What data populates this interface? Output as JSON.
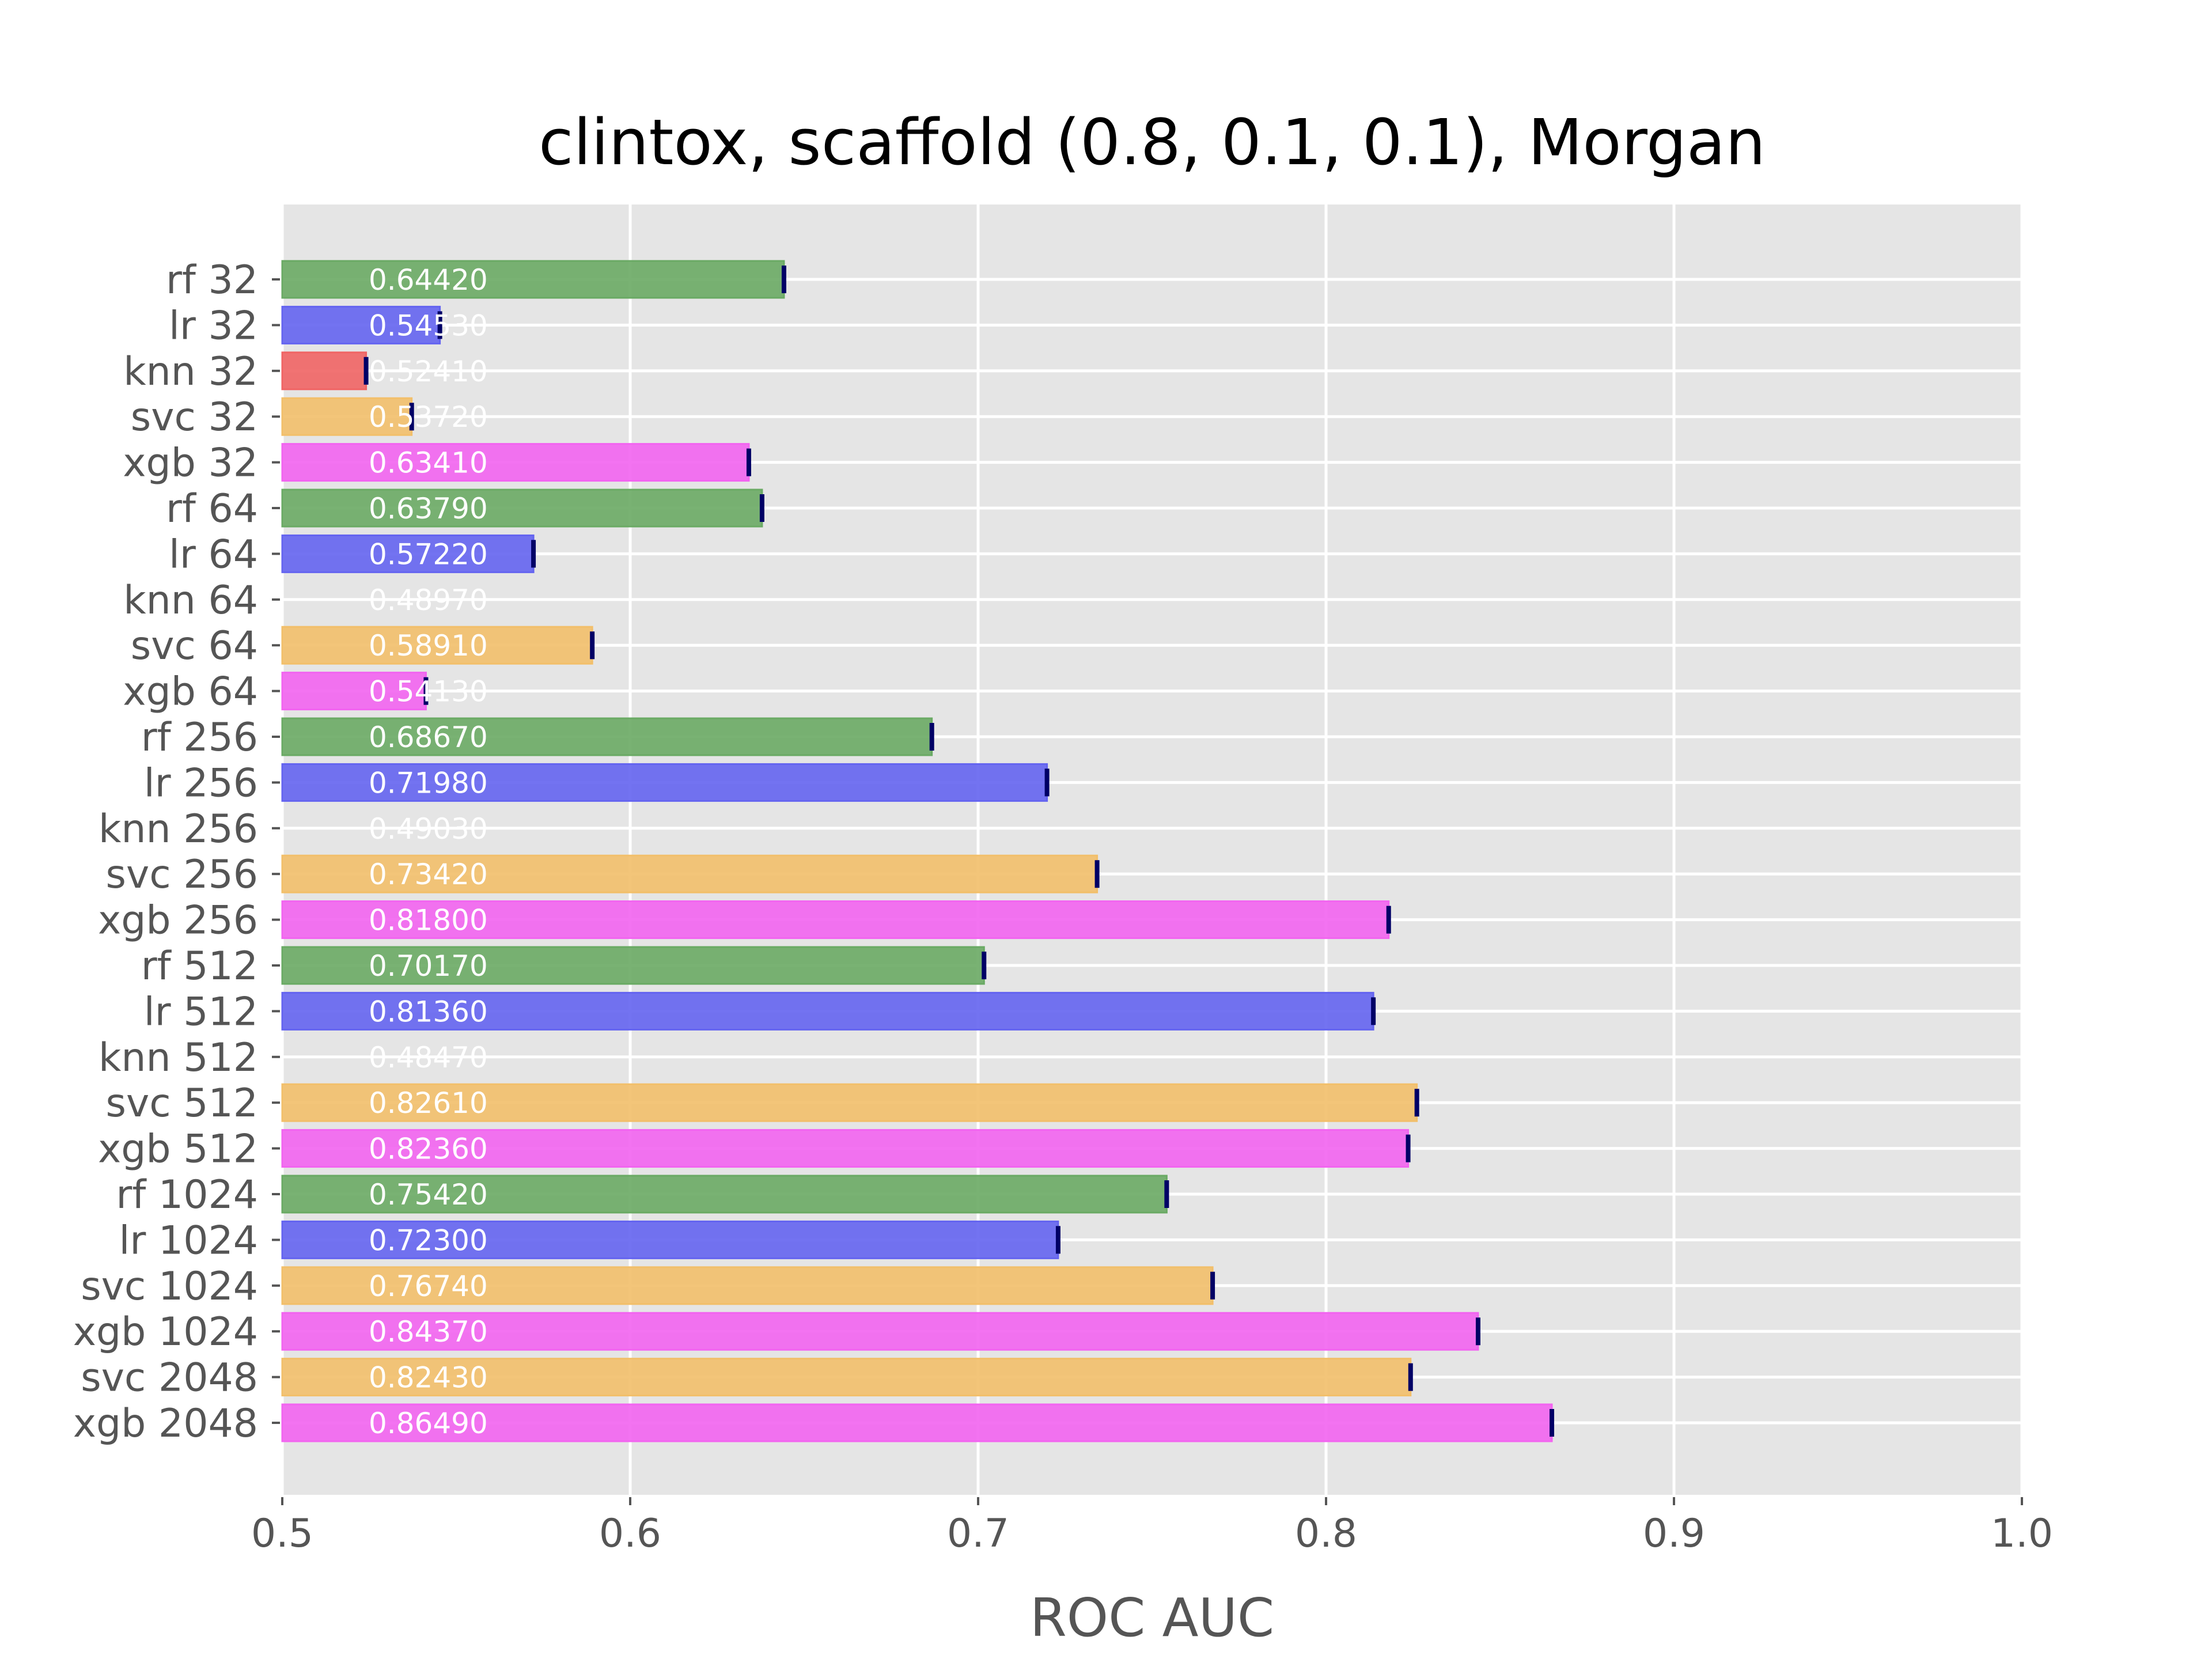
{
  "chart_data": {
    "type": "bar",
    "orientation": "horizontal",
    "title": "clintox, scaffold (0.8, 0.1, 0.1), Morgan",
    "xlabel": "ROC AUC",
    "ylabel": "",
    "xlim": [
      0.5,
      1.0
    ],
    "xticks": [
      0.5,
      0.6,
      0.7,
      0.8,
      0.9,
      1.0
    ],
    "xtick_labels": [
      "0.5",
      "0.6",
      "0.7",
      "0.8",
      "0.9",
      "1.0"
    ],
    "grid": true,
    "background": "#e5e5e5",
    "colors": {
      "rf": "#6aaa64",
      "lr": "#6464f0",
      "knn": "#f06464",
      "svc": "#f2bf6a",
      "xgb": "#f264f0",
      "error_bar": "#000066"
    },
    "categories": [
      "rf 32",
      "lr 32",
      "knn 32",
      "svc 32",
      "xgb 32",
      "rf 64",
      "lr 64",
      "knn 64",
      "svc 64",
      "xgb 64",
      "rf 256",
      "lr 256",
      "knn 256",
      "svc 256",
      "xgb 256",
      "rf 512",
      "lr 512",
      "knn 512",
      "svc 512",
      "xgb 512",
      "rf 1024",
      "lr 1024",
      "svc 1024",
      "xgb 1024",
      "svc 2048",
      "xgb 2048"
    ],
    "models": [
      "rf",
      "lr",
      "knn",
      "svc",
      "xgb",
      "rf",
      "lr",
      "knn",
      "svc",
      "xgb",
      "rf",
      "lr",
      "knn",
      "svc",
      "xgb",
      "rf",
      "lr",
      "knn",
      "svc",
      "xgb",
      "rf",
      "lr",
      "svc",
      "xgb",
      "svc",
      "xgb"
    ],
    "values": [
      0.6442,
      0.5453,
      0.5241,
      0.5372,
      0.6341,
      0.6379,
      0.5722,
      0.4897,
      0.5891,
      0.5413,
      0.6867,
      0.7198,
      0.4903,
      0.7342,
      0.818,
      0.7017,
      0.8136,
      0.4847,
      0.8261,
      0.8236,
      0.7542,
      0.723,
      0.7674,
      0.8437,
      0.8243,
      0.8649
    ],
    "value_labels": [
      "0.64420",
      "0.54530",
      "0.52410",
      "0.53720",
      "0.63410",
      "0.63790",
      "0.57220",
      "0.48970",
      "0.58910",
      "0.54130",
      "0.68670",
      "0.71980",
      "0.49030",
      "0.73420",
      "0.81800",
      "0.70170",
      "0.81360",
      "0.48470",
      "0.82610",
      "0.82360",
      "0.75420",
      "0.72300",
      "0.76740",
      "0.84370",
      "0.82430",
      "0.86490"
    ]
  }
}
